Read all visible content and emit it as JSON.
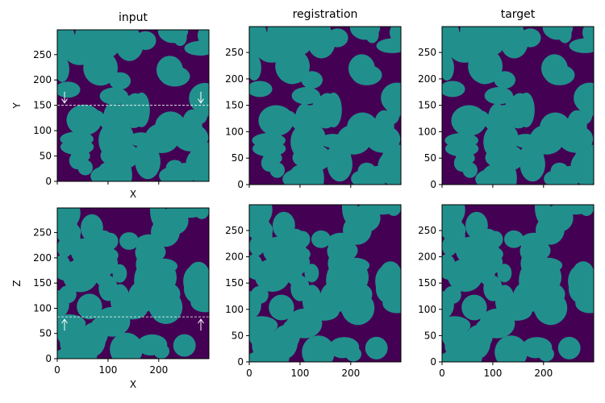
{
  "colors": {
    "phase_low": "#440154",
    "phase_high": "#21908c",
    "guide": "#ffffff"
  },
  "chart_data": [
    {
      "type": "heatmap",
      "id": "input-xy",
      "title": "input",
      "xlabel": "X",
      "ylabel": "Y",
      "xlim": [
        0,
        299
      ],
      "ylim": [
        0,
        299
      ],
      "xticks": [],
      "yticks": [
        0,
        50,
        100,
        150,
        200,
        250
      ],
      "guide_line_value": 150,
      "arrow_direction": "down",
      "seed": 1
    },
    {
      "type": "heatmap",
      "id": "registration-xy",
      "title": "registration",
      "xlabel": "",
      "ylabel": "",
      "xlim": [
        0,
        299
      ],
      "ylim": [
        0,
        299
      ],
      "xticks": [],
      "yticks": [
        0,
        50,
        100,
        150,
        200,
        250
      ],
      "seed": 1
    },
    {
      "type": "heatmap",
      "id": "target-xy",
      "title": "target",
      "xlabel": "",
      "ylabel": "",
      "xlim": [
        0,
        299
      ],
      "ylim": [
        0,
        299
      ],
      "xticks": [],
      "yticks": [
        0,
        50,
        100,
        150,
        200,
        250
      ],
      "seed": 1
    },
    {
      "type": "heatmap",
      "id": "input-xz",
      "title": "",
      "xlabel": "X",
      "ylabel": "Z",
      "xlim": [
        0,
        299
      ],
      "ylim": [
        0,
        299
      ],
      "xticks": [
        0,
        100,
        200
      ],
      "yticks": [
        0,
        50,
        100,
        150,
        200,
        250
      ],
      "guide_line_value": 83,
      "arrow_direction": "up",
      "seed": 2
    },
    {
      "type": "heatmap",
      "id": "registration-xz",
      "title": "",
      "xlabel": "",
      "ylabel": "",
      "xlim": [
        0,
        299
      ],
      "ylim": [
        0,
        299
      ],
      "xticks": [
        0,
        100,
        200
      ],
      "yticks": [
        0,
        50,
        100,
        150,
        200,
        250
      ],
      "seed": 2
    },
    {
      "type": "heatmap",
      "id": "target-xz",
      "title": "",
      "xlabel": "",
      "ylabel": "",
      "xlim": [
        0,
        299
      ],
      "ylim": [
        0,
        299
      ],
      "xticks": [
        0,
        100,
        200
      ],
      "yticks": [
        0,
        50,
        100,
        150,
        200,
        250
      ],
      "seed": 2
    }
  ]
}
